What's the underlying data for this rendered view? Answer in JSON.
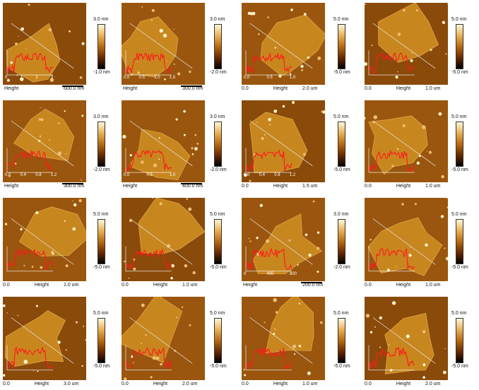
{
  "panels": [
    {
      "axis_left": "",
      "axis_mid": "Height",
      "axis_right": "600.0 nm",
      "cbar_top": "3.0 nm",
      "cbar_bot": "-1.0 nm",
      "profile_ticks": [
        "0",
        "1",
        "2",
        "3"
      ]
    },
    {
      "axis_left": "",
      "axis_mid": "Height",
      "axis_right": "300.0 nm",
      "cbar_top": "3.0 nm",
      "cbar_bot": "-2.0 nm",
      "profile_ticks": [
        "0.0",
        "0.5",
        "1.0",
        "1.5"
      ]
    },
    {
      "axis_left": "0.0",
      "axis_mid": "Height",
      "axis_right": "2.0 um",
      "cbar_top": "5.0 nm",
      "cbar_bot": "-5.0 nm",
      "profile_ticks": [
        "0.0",
        "0.5",
        "1.0"
      ]
    },
    {
      "axis_left": "0.0",
      "axis_mid": "Height",
      "axis_right": "1.0 um",
      "cbar_top": "5.0 nm",
      "cbar_bot": "-5.0 nm",
      "profile_ticks": []
    },
    {
      "axis_left": "",
      "axis_mid": "Height",
      "axis_right": "300.0 nm",
      "cbar_top": "3.0 nm",
      "cbar_bot": "-2.0 nm",
      "profile_ticks": [
        "0.0",
        "0.4",
        "0.8",
        "1.2"
      ]
    },
    {
      "axis_left": "",
      "axis_mid": "Height",
      "axis_right": "400.0 nm",
      "cbar_top": "3.0 nm",
      "cbar_bot": "-2.0 nm",
      "profile_ticks": [
        "0.0",
        "0.5",
        "1.0"
      ]
    },
    {
      "axis_left": "0.0",
      "axis_mid": "Height",
      "axis_right": "1.5 um",
      "cbar_top": "5.0 nm",
      "cbar_bot": "-5.0 nm",
      "profile_ticks": [
        "0.0",
        "0.4",
        "0.8",
        "1.2"
      ]
    },
    {
      "axis_left": "0.0",
      "axis_mid": "Height",
      "axis_right": "1.0 um",
      "cbar_top": "5.0 nm",
      "cbar_bot": "-5.0 nm",
      "profile_ticks": []
    },
    {
      "axis_left": "0.0",
      "axis_mid": "Height",
      "axis_right": "1.0 um",
      "cbar_top": "5.0 nm",
      "cbar_bot": "-5.0 nm",
      "profile_ticks": []
    },
    {
      "axis_left": "0.0",
      "axis_mid": "Height",
      "axis_right": "1.0 um",
      "cbar_top": "5.0 nm",
      "cbar_bot": "-5.0 nm",
      "profile_ticks": []
    },
    {
      "axis_left": "",
      "axis_mid": "Height",
      "axis_right": "200.0 nm",
      "cbar_top": "3.0 nm",
      "cbar_bot": "-2.0 nm",
      "profile_ticks": [
        "0",
        "400",
        "800"
      ]
    },
    {
      "axis_left": "0.0",
      "axis_mid": "Height",
      "axis_right": "1.0 um",
      "cbar_top": "5.0 nm",
      "cbar_bot": "-5.0 nm",
      "profile_ticks": []
    },
    {
      "axis_left": "0.0",
      "axis_mid": "Height",
      "axis_right": "3.0 um",
      "cbar_top": "5.0 nm",
      "cbar_bot": "-5.0 nm",
      "profile_ticks": []
    },
    {
      "axis_left": "0.0",
      "axis_mid": "Height",
      "axis_right": "2.0 um",
      "cbar_top": "5.0 nm",
      "cbar_bot": "-5.0 nm",
      "profile_ticks": []
    },
    {
      "axis_left": "0.0",
      "axis_mid": "Height",
      "axis_right": "1.0 um",
      "cbar_top": "5.0 nm",
      "cbar_bot": "-5.0 nm",
      "profile_ticks": []
    },
    {
      "axis_left": "0.0",
      "axis_mid": "Height",
      "axis_right": "2.0 um",
      "cbar_top": "5.0 nm",
      "cbar_bot": "-5.0 nm",
      "profile_ticks": []
    }
  ]
}
